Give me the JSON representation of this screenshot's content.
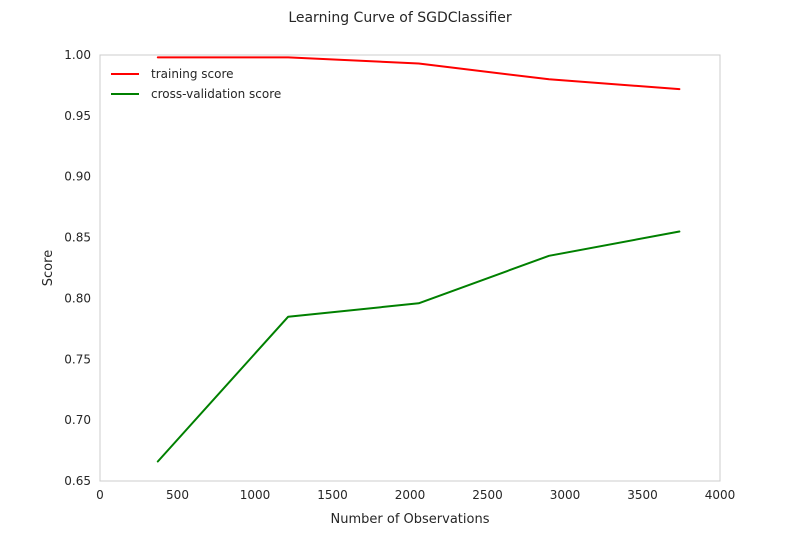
{
  "chart_data": {
    "type": "line",
    "title": "Learning Curve of SGDClassifier",
    "xlabel": "Number of Observations",
    "ylabel": "Score",
    "xlim": [
      0,
      4000
    ],
    "ylim": [
      0.65,
      1.0
    ],
    "xticks": [
      0,
      500,
      1000,
      1500,
      2000,
      2500,
      3000,
      3500,
      4000
    ],
    "xtick_labels": [
      "0",
      "500",
      "1000",
      "1500",
      "2000",
      "2500",
      "3000",
      "3500",
      "4000"
    ],
    "yticks": [
      0.65,
      0.7,
      0.75,
      0.8,
      0.85,
      0.9,
      0.95,
      1.0
    ],
    "ytick_labels": [
      "0.65",
      "0.70",
      "0.75",
      "0.80",
      "0.85",
      "0.90",
      "0.95",
      "1.00"
    ],
    "grid": false,
    "legend_position": "top-left",
    "series": [
      {
        "name": "training score",
        "color": "#ff0000",
        "x": [
          373,
          1214,
          2056,
          2897,
          3738
        ],
        "y": [
          0.998,
          0.998,
          0.993,
          0.98,
          0.972
        ]
      },
      {
        "name": "cross-validation score",
        "color": "#008000",
        "x": [
          373,
          1214,
          2056,
          2897,
          3738
        ],
        "y": [
          0.666,
          0.785,
          0.796,
          0.835,
          0.855
        ]
      }
    ]
  }
}
